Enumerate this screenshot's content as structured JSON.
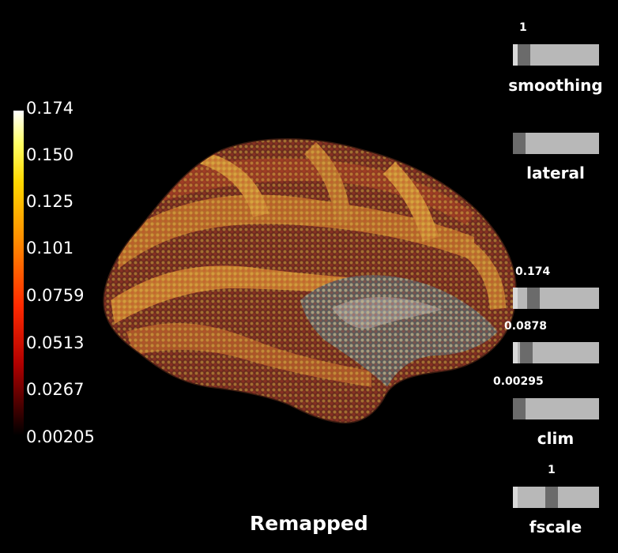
{
  "viewer": {
    "title": "Remapped",
    "background": "#000000"
  },
  "colorbar": {
    "labels": [
      "0.174",
      "0.150",
      "0.125",
      "0.101",
      "0.0759",
      "0.0513",
      "0.0267",
      "0.00205"
    ],
    "colormap": "hot",
    "min": 0.00205,
    "max": 0.174
  },
  "sliders": {
    "smoothing": {
      "title": "smoothing",
      "value_label": "1",
      "value": 1
    },
    "view": {
      "title": "lateral"
    },
    "clim_high": {
      "value_label": "0.174",
      "value": 0.174
    },
    "clim_mid": {
      "value_label": "0.0878",
      "value": 0.0878
    },
    "clim_low": {
      "value_label": "0.00295",
      "value": 0.00295
    },
    "clim": {
      "title": "clim"
    },
    "fscale": {
      "title": "fscale",
      "value_label": "1",
      "value": 1
    }
  }
}
